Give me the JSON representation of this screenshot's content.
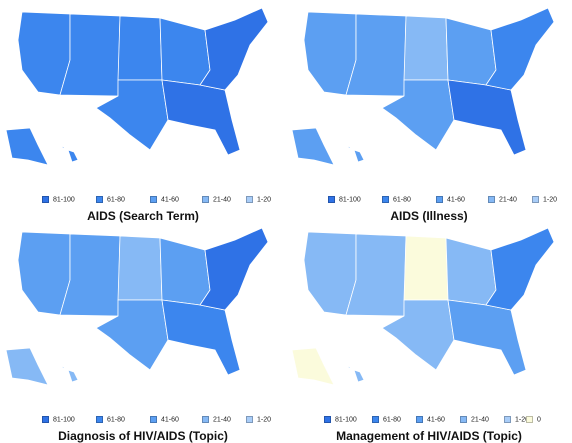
{
  "colors": {
    "c81_100": "#2f72e6",
    "c61_80": "#3c86ee",
    "c41_60": "#5c9ff2",
    "c21_40": "#86b9f5",
    "c1_20": "#a9cdf8",
    "c0": "#fbfbdc"
  },
  "panels": [
    {
      "title": "AIDS (Search Term)",
      "legend": [
        {
          "label": "81-100",
          "color": "#2f72e6"
        },
        {
          "label": "61-80",
          "color": "#3c86ee"
        },
        {
          "label": "41-60",
          "color": "#5c9ff2"
        },
        {
          "label": "21-40",
          "color": "#86b9f5"
        },
        {
          "label": "1-20",
          "color": "#a9cdf8"
        }
      ],
      "region_fill": {
        "west": "#3c86ee",
        "plains": "#3c86ee",
        "midwest": "#3c86ee",
        "south": "#3c86ee",
        "northeast": "#2f72e6",
        "southeast": "#2f72e6",
        "alaska": "#3c86ee",
        "hawaii": "#3c86ee"
      }
    },
    {
      "title": "AIDS (Illness)",
      "legend": [
        {
          "label": "81-100",
          "color": "#2f72e6"
        },
        {
          "label": "61-80",
          "color": "#3c86ee"
        },
        {
          "label": "41-60",
          "color": "#5c9ff2"
        },
        {
          "label": "21-40",
          "color": "#86b9f5"
        },
        {
          "label": "1-20",
          "color": "#a9cdf8"
        }
      ],
      "region_fill": {
        "west": "#5c9ff2",
        "plains": "#86b9f5",
        "midwest": "#5c9ff2",
        "south": "#5c9ff2",
        "northeast": "#3c86ee",
        "southeast": "#2f72e6",
        "alaska": "#5c9ff2",
        "hawaii": "#5c9ff2"
      }
    },
    {
      "title": "Diagnosis of HIV/AIDS (Topic)",
      "legend": [
        {
          "label": "81-100",
          "color": "#2f72e6"
        },
        {
          "label": "61-80",
          "color": "#3c86ee"
        },
        {
          "label": "41-60",
          "color": "#5c9ff2"
        },
        {
          "label": "21-40",
          "color": "#86b9f5"
        },
        {
          "label": "1-20",
          "color": "#a9cdf8"
        }
      ],
      "region_fill": {
        "west": "#5c9ff2",
        "plains": "#86b9f5",
        "midwest": "#5c9ff2",
        "south": "#5c9ff2",
        "northeast": "#2f72e6",
        "southeast": "#3c86ee",
        "alaska": "#86b9f5",
        "hawaii": "#86b9f5"
      }
    },
    {
      "title": "Management of HIV/AIDS (Topic)",
      "legend": [
        {
          "label": "81-100",
          "color": "#2f72e6"
        },
        {
          "label": "61-80",
          "color": "#3c86ee"
        },
        {
          "label": "41-60",
          "color": "#5c9ff2"
        },
        {
          "label": "21-40",
          "color": "#86b9f5"
        },
        {
          "label": "1-20",
          "color": "#a9cdf8"
        },
        {
          "label": "0",
          "color": "#fbfbdc"
        }
      ],
      "region_fill": {
        "west": "#86b9f5",
        "plains": "#fbfbdc",
        "midwest": "#86b9f5",
        "south": "#86b9f5",
        "northeast": "#3c86ee",
        "southeast": "#5c9ff2",
        "alaska": "#fbfbdc",
        "hawaii": "#86b9f5"
      }
    }
  ]
}
